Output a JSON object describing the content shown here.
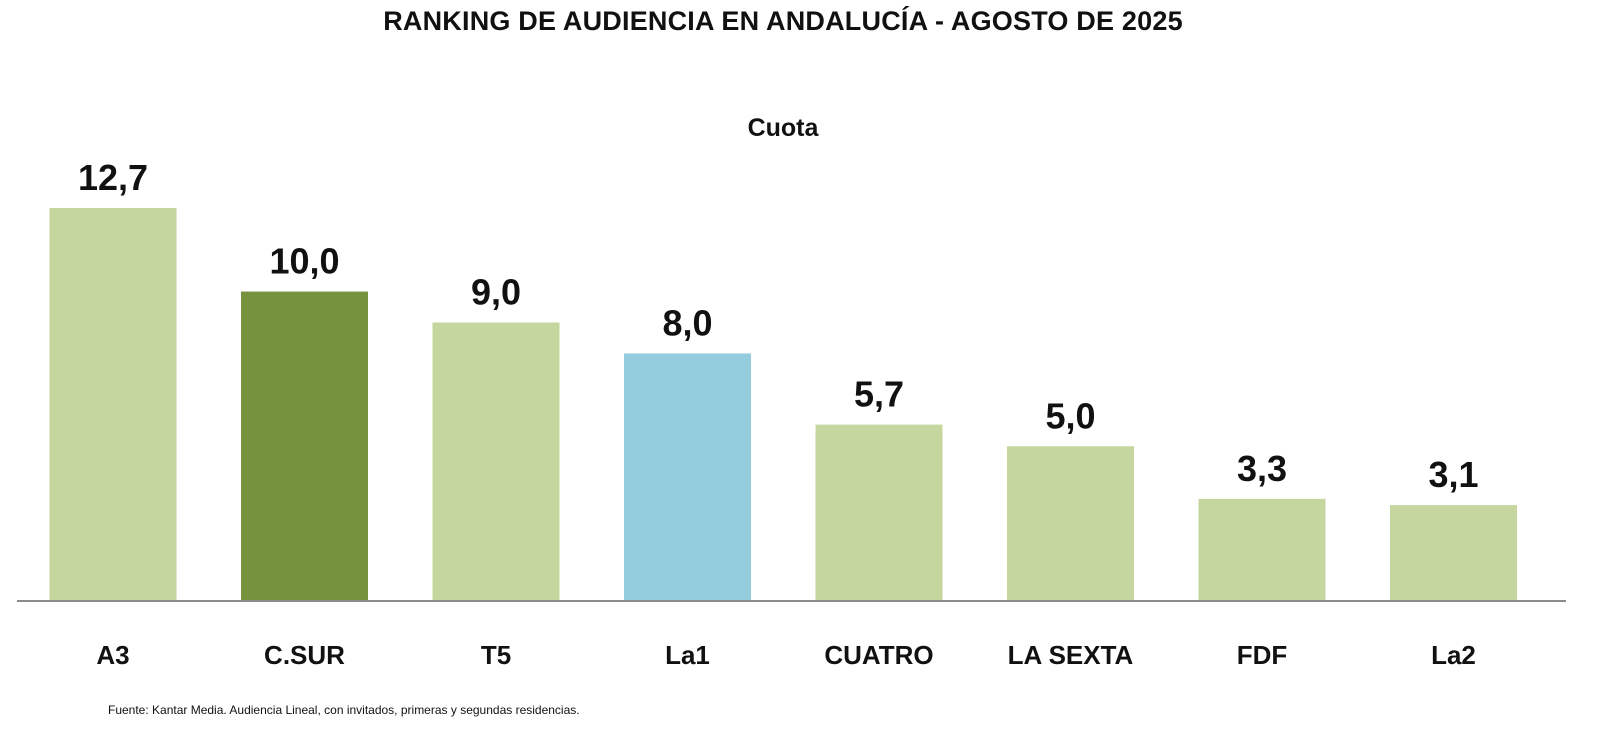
{
  "chart_data": {
    "type": "bar",
    "title": "RANKING DE AUDIENCIA EN ANDALUCÍA - AGOSTO DE 2025",
    "subtitle": "Cuota",
    "categories": [
      "A3",
      "C.SUR",
      "T5",
      "La1",
      "CUATRO",
      "LA SEXTA",
      "FDF",
      "La2"
    ],
    "values": [
      12.7,
      10.0,
      9.0,
      8.0,
      5.7,
      5.0,
      3.3,
      3.1
    ],
    "value_labels": [
      "12,7",
      "10,0",
      "9,0",
      "8,0",
      "5,7",
      "5,0",
      "3,3",
      "3,1"
    ],
    "colors": [
      "#c5d79e",
      "#77923c",
      "#c5d79e",
      "#93cddd",
      "#c5d79e",
      "#c5d79e",
      "#c5d79e",
      "#c5d79e"
    ],
    "ylim": [
      0,
      12.7
    ],
    "grid": false,
    "legend": "none",
    "axis_color": "#8c8c8c",
    "source": "Fuente: Kantar Media. Audiencia Lineal, con invitados, primeras y segundas residencias."
  }
}
